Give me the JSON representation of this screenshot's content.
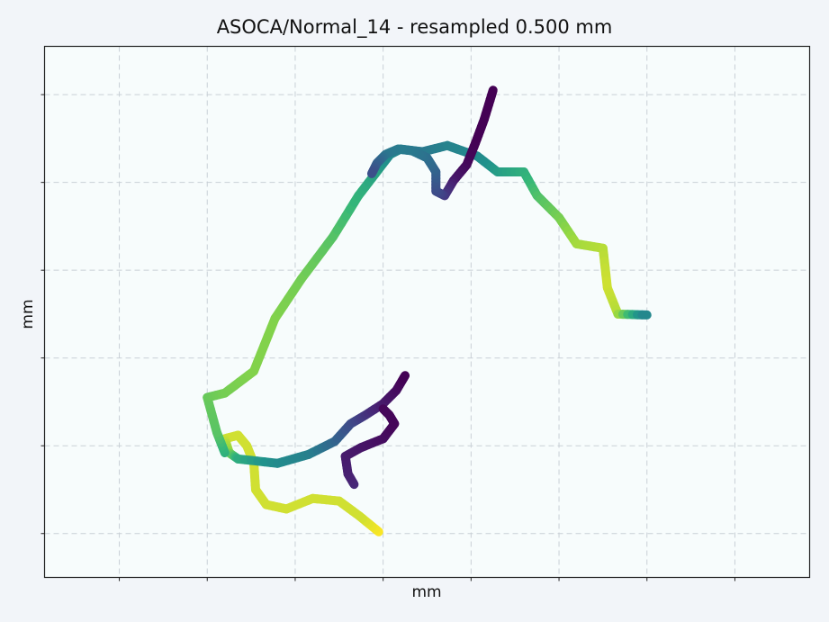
{
  "chart_data": {
    "type": "line",
    "title": "ASOCA/Normal_14 - resampled 0.500 mm",
    "xlabel": "mm",
    "ylabel": "mm",
    "xlim": [
      0,
      8.7
    ],
    "ylim": [
      0,
      6.05
    ],
    "xticks": [
      0.85,
      1.85,
      2.85,
      3.85,
      4.85,
      5.85,
      6.85,
      7.85
    ],
    "yticks": [
      0.5,
      1.5,
      2.5,
      3.5,
      4.5,
      5.5
    ],
    "grid": true,
    "colormap": "viridis",
    "background_color": "#f7fcfc",
    "grid_color": "#c9d0d6",
    "series": [
      {
        "points": [
          [
            3.8,
            0.52,
            1.0
          ],
          [
            3.58,
            0.7,
            0.95
          ],
          [
            3.35,
            0.87,
            0.95
          ],
          [
            3.05,
            0.9,
            0.95
          ],
          [
            2.75,
            0.78,
            0.95
          ],
          [
            2.52,
            0.83,
            0.95
          ],
          [
            2.4,
            1.0,
            0.95
          ],
          [
            2.38,
            1.3,
            0.95
          ],
          [
            2.3,
            1.5,
            0.95
          ],
          [
            2.2,
            1.62,
            0.95
          ],
          [
            2.05,
            1.58,
            0.95
          ],
          [
            2.1,
            1.42,
            0.88
          ],
          [
            2.2,
            1.35,
            0.72
          ],
          [
            2.65,
            1.3,
            0.6
          ],
          [
            3.0,
            1.4,
            0.55
          ],
          [
            3.3,
            1.55,
            0.42
          ],
          [
            3.48,
            1.75,
            0.3
          ],
          [
            3.65,
            1.85,
            0.2
          ],
          [
            3.85,
            1.98,
            0.1
          ],
          [
            4.0,
            2.13,
            0.05
          ],
          [
            4.1,
            2.3,
            0.0
          ]
        ]
      },
      {
        "points": [
          [
            3.52,
            1.06,
            0.15
          ],
          [
            3.45,
            1.18,
            0.12
          ],
          [
            3.42,
            1.38,
            0.1
          ],
          [
            3.6,
            1.48,
            0.08
          ],
          [
            3.85,
            1.58,
            0.05
          ],
          [
            3.98,
            1.75,
            0.02
          ],
          [
            3.92,
            1.85,
            0.02
          ],
          [
            3.85,
            1.92,
            0.02
          ]
        ]
      },
      {
        "points": [
          [
            2.05,
            1.42,
            0.72
          ],
          [
            1.96,
            1.65,
            0.8
          ],
          [
            1.85,
            2.05,
            0.82
          ],
          [
            2.05,
            2.1,
            0.84
          ],
          [
            2.38,
            2.35,
            0.86
          ],
          [
            2.62,
            2.95,
            0.86
          ],
          [
            2.92,
            3.4,
            0.84
          ],
          [
            3.28,
            3.88,
            0.8
          ],
          [
            3.57,
            4.35,
            0.74
          ],
          [
            3.8,
            4.65,
            0.68
          ],
          [
            3.93,
            4.82,
            0.6
          ],
          [
            4.05,
            4.88,
            0.55
          ],
          [
            4.3,
            4.85,
            0.5
          ],
          [
            4.58,
            4.92,
            0.55
          ],
          [
            4.92,
            4.8,
            0.58
          ],
          [
            5.15,
            4.62,
            0.66
          ],
          [
            5.45,
            4.62,
            0.72
          ],
          [
            5.6,
            4.35,
            0.78
          ],
          [
            5.85,
            4.1,
            0.84
          ],
          [
            6.05,
            3.8,
            0.9
          ],
          [
            6.35,
            3.75,
            0.92
          ],
          [
            6.4,
            3.3,
            0.95
          ],
          [
            6.52,
            3.0,
            0.92
          ],
          [
            6.85,
            2.99,
            0.55
          ]
        ]
      },
      {
        "points": [
          [
            5.1,
            5.55,
            0.0
          ],
          [
            5.0,
            5.22,
            0.0
          ],
          [
            4.9,
            4.95,
            0.0
          ],
          [
            4.8,
            4.7,
            0.02
          ],
          [
            4.65,
            4.52,
            0.08
          ],
          [
            4.55,
            4.35,
            0.2
          ],
          [
            4.45,
            4.4,
            0.28
          ],
          [
            4.45,
            4.62,
            0.38
          ],
          [
            4.35,
            4.78,
            0.45
          ],
          [
            4.18,
            4.86,
            0.5
          ],
          [
            4.02,
            4.88,
            0.52
          ],
          [
            3.88,
            4.82,
            0.5
          ],
          [
            3.78,
            4.72,
            0.4
          ],
          [
            3.72,
            4.6,
            0.3
          ]
        ]
      }
    ]
  }
}
